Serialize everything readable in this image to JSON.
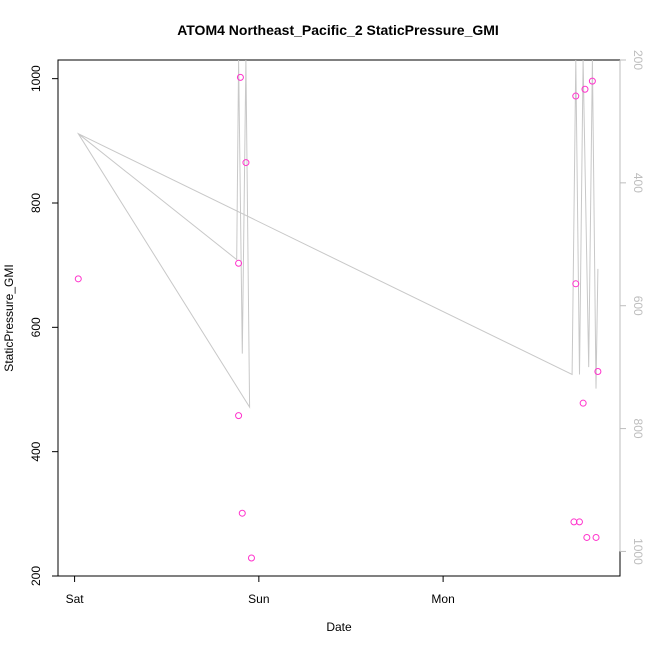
{
  "chart_data": {
    "type": "scatter",
    "title": "ATOM4 Northeast_Pacific_2 StaticPressure_GMI",
    "xlabel": "Date",
    "ylabel": "StaticPressure_GMI",
    "x_ticks": [
      {
        "label": "Sat",
        "day": 0
      },
      {
        "label": "Sun",
        "day": 1
      },
      {
        "label": "Mon",
        "day": 2
      }
    ],
    "xlim_days": [
      -0.09,
      2.96
    ],
    "ylim": [
      200,
      1030
    ],
    "y_ticks": [
      200,
      400,
      600,
      800,
      1000
    ],
    "right_axis": {
      "ylim_reversed": [
        1040,
        200
      ],
      "ticks": [
        200,
        400,
        600,
        800,
        1000
      ],
      "color": "#bdbdbd"
    },
    "grid": false,
    "points_color": "#ff33cc",
    "line_color": "#c8c8c8",
    "series": [
      {
        "kind": "points",
        "points": [
          {
            "day": 0.02,
            "y": 678
          },
          {
            "day": 0.89,
            "y": 458
          },
          {
            "day": 0.89,
            "y": 703
          },
          {
            "day": 0.9,
            "y": 1002
          },
          {
            "day": 0.91,
            "y": 301
          },
          {
            "day": 0.93,
            "y": 865
          },
          {
            "day": 0.96,
            "y": 229
          },
          {
            "day": 2.71,
            "y": 287
          },
          {
            "day": 2.72,
            "y": 670
          },
          {
            "day": 2.72,
            "y": 972
          },
          {
            "day": 2.74,
            "y": 287
          },
          {
            "day": 2.76,
            "y": 478
          },
          {
            "day": 2.77,
            "y": 983
          },
          {
            "day": 2.78,
            "y": 262
          },
          {
            "day": 2.81,
            "y": 996
          },
          {
            "day": 2.83,
            "y": 262
          },
          {
            "day": 2.84,
            "y": 529
          }
        ]
      },
      {
        "kind": "line",
        "axis": "right",
        "points": [
          {
            "day": 0.02,
            "y": 320
          },
          {
            "day": 0.88,
            "y": 525
          },
          {
            "day": 0.89,
            "y": 200
          },
          {
            "day": 0.91,
            "y": 678
          },
          {
            "day": 0.93,
            "y": 200
          },
          {
            "day": 0.95,
            "y": 765
          },
          {
            "day": 0.02,
            "y": 320
          },
          {
            "day": 2.7,
            "y": 712
          },
          {
            "day": 2.72,
            "y": 200
          },
          {
            "day": 2.74,
            "y": 712
          },
          {
            "day": 2.76,
            "y": 200
          },
          {
            "day": 2.79,
            "y": 700
          },
          {
            "day": 2.81,
            "y": 200
          },
          {
            "day": 2.83,
            "y": 735
          },
          {
            "day": 2.84,
            "y": 540
          }
        ]
      }
    ]
  }
}
